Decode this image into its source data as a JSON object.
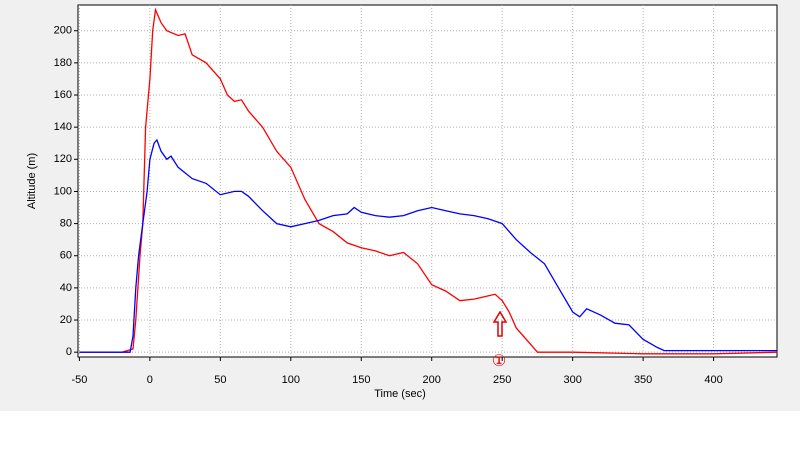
{
  "chart_data": {
    "type": "line",
    "x_label": "Time (sec)",
    "y_label": "Altitude (m)",
    "xlim": [
      -51,
      445
    ],
    "ylim": [
      -3,
      216
    ],
    "xticks": [
      -50,
      0,
      50,
      100,
      150,
      200,
      250,
      300,
      350,
      400
    ],
    "yticks": [
      0,
      20,
      40,
      60,
      80,
      100,
      120,
      140,
      160,
      180,
      200
    ],
    "grid": true,
    "series": [
      {
        "color": "#ff0000",
        "x": [
          -50,
          -20,
          -12,
          -10,
          -7,
          -5,
          -3,
          0,
          2,
          4,
          8,
          12,
          20,
          25,
          30,
          40,
          50,
          55,
          60,
          65,
          70,
          80,
          90,
          100,
          110,
          120,
          130,
          140,
          150,
          160,
          170,
          180,
          190,
          200,
          210,
          220,
          230,
          240,
          245,
          250,
          255,
          260,
          270,
          275,
          300,
          350,
          400,
          445
        ],
        "values": [
          0,
          0,
          2,
          20,
          60,
          80,
          140,
          170,
          200,
          213,
          205,
          200,
          197,
          198,
          185,
          180,
          170,
          160,
          156,
          157,
          150,
          140,
          125,
          115,
          95,
          80,
          75,
          68,
          65,
          63,
          60,
          62,
          55,
          42,
          38,
          32,
          33,
          35,
          36,
          32,
          25,
          15,
          5,
          0,
          0,
          -1,
          -1,
          0
        ]
      },
      {
        "color": "#0000ff",
        "x": [
          -50,
          -20,
          -14,
          -12,
          -10,
          -8,
          -5,
          -2,
          0,
          3,
          5,
          8,
          12,
          15,
          20,
          30,
          40,
          50,
          60,
          65,
          70,
          80,
          90,
          100,
          110,
          120,
          130,
          140,
          145,
          150,
          160,
          170,
          180,
          190,
          200,
          210,
          220,
          230,
          240,
          250,
          260,
          270,
          280,
          290,
          300,
          305,
          310,
          320,
          330,
          340,
          350,
          360,
          365,
          400,
          445
        ],
        "values": [
          0,
          0,
          0,
          10,
          40,
          60,
          80,
          100,
          120,
          130,
          132,
          125,
          120,
          122,
          115,
          108,
          105,
          98,
          100,
          100,
          97,
          88,
          80,
          78,
          80,
          82,
          85,
          86,
          90,
          87,
          85,
          84,
          85,
          88,
          90,
          88,
          86,
          85,
          83,
          80,
          70,
          62,
          55,
          40,
          25,
          22,
          27,
          23,
          18,
          17,
          8,
          3,
          1,
          1,
          1
        ]
      }
    ],
    "annotation": "①"
  }
}
